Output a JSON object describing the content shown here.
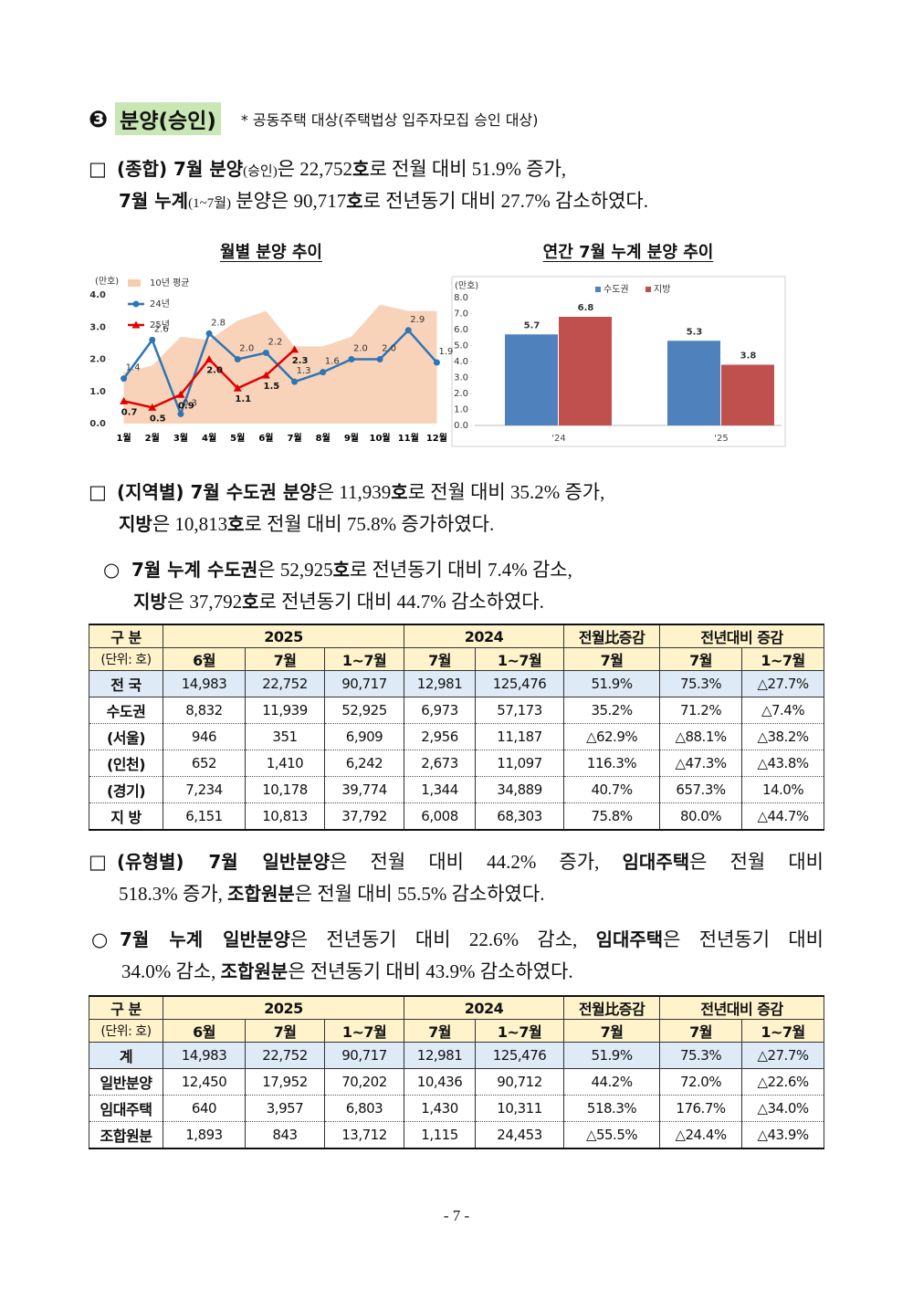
{
  "heading": {
    "number": "❸",
    "title": "분양(승인)",
    "note": "* 공동주택 대상(주택법상 입주자모집 승인 대상)"
  },
  "paragraphs": [
    {
      "marker": "□",
      "lines": [
        [
          {
            "t": "(종합) 7월 분양",
            "s": "b"
          },
          {
            "t": "(승인)",
            "s": "sm"
          },
          {
            "t": "은 22,752",
            "s": "n"
          },
          {
            "t": "호",
            "s": "b"
          },
          {
            "t": "로 전월 대비 51.9% 증가,",
            "s": "n"
          }
        ],
        [
          {
            "t": "7월 누계",
            "s": "b"
          },
          {
            "t": "(1~7월)",
            "s": "sm"
          },
          {
            "t": " 분양은 90,717",
            "s": "n"
          },
          {
            "t": "호",
            "s": "b"
          },
          {
            "t": "로 전년동기 대비 27.7% 감소하였다.",
            "s": "n"
          }
        ]
      ]
    },
    {
      "marker": "□",
      "lines": [
        [
          {
            "t": "(지역별) 7월 수도권 분양",
            "s": "b"
          },
          {
            "t": "은 11,939",
            "s": "n"
          },
          {
            "t": "호",
            "s": "b"
          },
          {
            "t": "로 전월 대비 35.2% 증가,",
            "s": "n"
          }
        ],
        [
          {
            "t": "지방",
            "s": "b"
          },
          {
            "t": "은 10,813",
            "s": "n"
          },
          {
            "t": "호",
            "s": "b"
          },
          {
            "t": "로 전월 대비 75.8% 증가하였다.",
            "s": "n"
          }
        ]
      ]
    },
    {
      "marker": "○",
      "lines": [
        [
          {
            "t": "7월 누계 수도권",
            "s": "b"
          },
          {
            "t": "은 52,925",
            "s": "n"
          },
          {
            "t": "호",
            "s": "b"
          },
          {
            "t": "로 전년동기 대비 7.4% 감소,",
            "s": "n"
          }
        ],
        [
          {
            "t": "지방",
            "s": "b"
          },
          {
            "t": "은 37,792",
            "s": "n"
          },
          {
            "t": "호",
            "s": "b"
          },
          {
            "t": "로 전년동기 대비 44.7% 감소하였다.",
            "s": "n"
          }
        ]
      ]
    },
    {
      "marker": "□",
      "lines": [
        [
          {
            "t": "(유형별) 7월 일반분양",
            "s": "b"
          },
          {
            "t": "은 전월 대비 44.2% 증가, ",
            "s": "n"
          },
          {
            "t": "임대주택",
            "s": "b"
          },
          {
            "t": "은 전월 대비",
            "s": "n"
          }
        ],
        [
          {
            "t": "518.3% 증가, ",
            "s": "n"
          },
          {
            "t": "조합원분",
            "s": "b"
          },
          {
            "t": "은 전월 대비 55.5% 감소하였다.",
            "s": "n"
          }
        ]
      ]
    },
    {
      "marker": "○",
      "lines": [
        [
          {
            "t": "7월 누계 일반분양",
            "s": "b"
          },
          {
            "t": "은 전년동기 대비 22.6% 감소, ",
            "s": "n"
          },
          {
            "t": "임대주택",
            "s": "b"
          },
          {
            "t": "은 전년동기 대비",
            "s": "n"
          }
        ],
        [
          {
            "t": "34.0% 감소, ",
            "s": "n"
          },
          {
            "t": "조합원분",
            "s": "b"
          },
          {
            "t": "은 전년동기 대비 43.9% 감소하였다.",
            "s": "n"
          }
        ]
      ]
    }
  ],
  "chart_data": [
    {
      "type": "line",
      "title": "월별 분양 추이",
      "ylabel": "(만호)",
      "categories": [
        "1월",
        "2월",
        "3월",
        "4월",
        "5월",
        "6월",
        "7월",
        "8월",
        "9월",
        "10월",
        "11월",
        "12월"
      ],
      "ylim": [
        0,
        4
      ],
      "yticks": [
        {
          "value": 0,
          "label": "0.0"
        },
        {
          "value": 1,
          "label": "1.0"
        },
        {
          "value": 2,
          "label": "2.0"
        },
        {
          "value": 3,
          "label": "3.0"
        },
        {
          "value": 4,
          "label": "4.0"
        }
      ],
      "series": [
        {
          "name": "10년 평균",
          "type": "area",
          "color": "#f8cbad",
          "values": [
            1.6,
            1.8,
            2.7,
            2.6,
            3.2,
            3.5,
            2.4,
            2.4,
            2.7,
            3.7,
            3.5,
            3.5
          ]
        },
        {
          "name": "24년",
          "color": "#2e75b6",
          "values": [
            1.4,
            2.6,
            0.3,
            2.8,
            2.0,
            2.2,
            1.3,
            1.6,
            2.0,
            2.0,
            2.9,
            1.9
          ],
          "value_labels": [
            "1.4",
            "2.6",
            "0.3",
            "2.8",
            "2.0",
            "2.2",
            "1.3",
            "1.6",
            "2.0",
            "2.0",
            "2.9",
            "1.9"
          ]
        },
        {
          "name": "25년",
          "color": "#e00000",
          "values": [
            0.7,
            0.5,
            0.9,
            2.0,
            1.1,
            1.5,
            2.3,
            null,
            null,
            null,
            null,
            null
          ],
          "value_labels": [
            "0.7",
            "0.5",
            "0.9",
            "2.0",
            "1.1",
            "1.5",
            "2.3",
            null,
            null,
            null,
            null,
            null
          ]
        }
      ]
    },
    {
      "type": "bar",
      "title": "연간 7월 누계 분양 추이",
      "ylabel": "(만호)",
      "categories": [
        "'24",
        "'25"
      ],
      "ylim": [
        0,
        8
      ],
      "yticks": [
        {
          "value": 0,
          "label": "0.0"
        },
        {
          "value": 1,
          "label": "1.0"
        },
        {
          "value": 2,
          "label": "2.0"
        },
        {
          "value": 3,
          "label": "3.0"
        },
        {
          "value": 4,
          "label": "4.0"
        },
        {
          "value": 5,
          "label": "5.0"
        },
        {
          "value": 6,
          "label": "6.0"
        },
        {
          "value": 7,
          "label": "7.0"
        },
        {
          "value": 8,
          "label": "8.0"
        }
      ],
      "series": [
        {
          "name": "수도권",
          "color": "#4f81bd",
          "values": [
            5.7,
            5.3
          ]
        },
        {
          "name": "지방",
          "color": "#c0504d",
          "values": [
            6.8,
            3.8
          ]
        }
      ]
    }
  ],
  "tables": [
    {
      "header": [
        [
          "구 분",
          "2025",
          "2024",
          "전월比증감",
          "전년대비 증감"
        ],
        [
          "(단위: 호)",
          "6월",
          "7월",
          "1~7월",
          "7월",
          "1~7월",
          "7월",
          "7월",
          "1~7월"
        ]
      ],
      "rows": [
        [
          "전 국",
          "14,983",
          "22,752",
          "90,717",
          "12,981",
          "125,476",
          "51.9%",
          "75.3%",
          "△27.7%"
        ],
        [
          "수도권",
          "8,832",
          "11,939",
          "52,925",
          "6,973",
          "57,173",
          "35.2%",
          "71.2%",
          "△7.4%"
        ],
        [
          "(서울)",
          "946",
          "351",
          "6,909",
          "2,956",
          "11,187",
          "△62.9%",
          "△88.1%",
          "△38.2%"
        ],
        [
          "(인천)",
          "652",
          "1,410",
          "6,242",
          "2,673",
          "11,097",
          "116.3%",
          "△47.3%",
          "△43.8%"
        ],
        [
          "(경기)",
          "7,234",
          "10,178",
          "39,774",
          "1,344",
          "34,889",
          "40.7%",
          "657.3%",
          "14.0%"
        ],
        [
          "지 방",
          "6,151",
          "10,813",
          "37,792",
          "6,008",
          "68,303",
          "75.8%",
          "80.0%",
          "△44.7%"
        ]
      ]
    },
    {
      "header": [
        [
          "구 분",
          "2025",
          "2024",
          "전월比증감",
          "전년대비 증감"
        ],
        [
          "(단위: 호)",
          "6월",
          "7월",
          "1~7월",
          "7월",
          "1~7월",
          "7월",
          "7월",
          "1~7월"
        ]
      ],
      "rows": [
        [
          "계",
          "14,983",
          "22,752",
          "90,717",
          "12,981",
          "125,476",
          "51.9%",
          "75.3%",
          "△27.7%"
        ],
        [
          "일반분양",
          "12,450",
          "17,952",
          "70,202",
          "10,436",
          "90,712",
          "44.2%",
          "72.0%",
          "△22.6%"
        ],
        [
          "임대주택",
          "640",
          "3,957",
          "6,803",
          "1,430",
          "10,311",
          "518.3%",
          "176.7%",
          "△34.0%"
        ],
        [
          "조합원분",
          "1,893",
          "843",
          "13,712",
          "1,115",
          "24,453",
          "△55.5%",
          "△24.4%",
          "△43.9%"
        ]
      ]
    }
  ],
  "page": "- 7 -"
}
